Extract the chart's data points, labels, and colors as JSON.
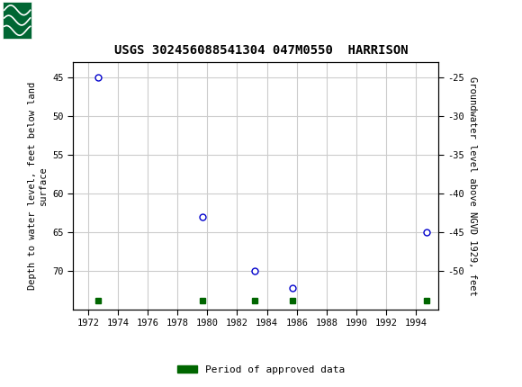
{
  "title": "USGS 302456088541304 047M0550  HARRISON",
  "header_bg_color": "#006633",
  "plot_points_x": [
    1972.7,
    1979.7,
    1983.2,
    1985.7,
    1994.7
  ],
  "plot_points_y": [
    45.0,
    63.0,
    70.0,
    72.2,
    65.0
  ],
  "approved_x": [
    1972.7,
    1979.7,
    1983.2,
    1985.7,
    1994.7
  ],
  "approved_y_val": 73.8,
  "xlim": [
    1971.0,
    1995.5
  ],
  "ylim_bottom": 75.0,
  "ylim_top": 43.0,
  "xticks": [
    1972,
    1974,
    1976,
    1978,
    1980,
    1982,
    1984,
    1986,
    1988,
    1990,
    1992,
    1994
  ],
  "yticks_left": [
    45,
    50,
    55,
    60,
    65,
    70
  ],
  "yticks_right": [
    -25,
    -30,
    -35,
    -40,
    -45,
    -50
  ],
  "ylabel_left": "Depth to water level, feet below land\nsurface",
  "ylabel_right": "Groundwater level above NGVD 1929, feet",
  "marker_color": "#0000cc",
  "marker_size": 5,
  "grid_color": "#cccccc",
  "approved_color": "#006600",
  "approved_marker_size": 4,
  "legend_label": "Period of approved data",
  "tick_fontsize": 7.5,
  "label_fontsize": 7.5,
  "title_fontsize": 10
}
